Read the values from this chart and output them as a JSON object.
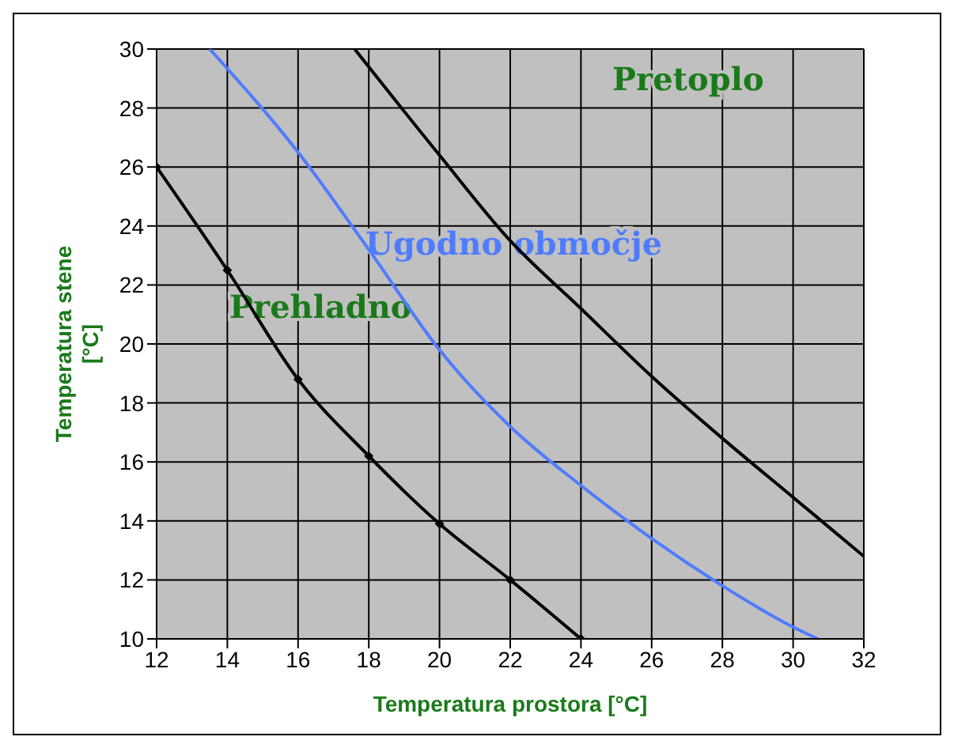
{
  "chart_data": {
    "type": "line",
    "xlabel": "Temperatura prostora [°C]",
    "ylabel": "Temperatura stene [°C]",
    "xlim": [
      12,
      32
    ],
    "xticks": [
      12,
      14,
      16,
      18,
      20,
      22,
      24,
      26,
      28,
      30,
      32
    ],
    "ylim": [
      10,
      30
    ],
    "yticks": [
      10,
      12,
      14,
      16,
      18,
      20,
      22,
      24,
      26,
      28,
      30
    ],
    "grid": true,
    "series": [
      {
        "color": "#000000",
        "marker": "diamond",
        "x": [
          12,
          14,
          16,
          18,
          20,
          22,
          24
        ],
        "values": [
          26,
          22.5,
          18.8,
          16.2,
          13.9,
          12,
          10
        ]
      },
      {
        "color": "#4f7cff",
        "marker": "none",
        "x": [
          13.5,
          16,
          18,
          20,
          22,
          24,
          26,
          28,
          30,
          30.7
        ],
        "values": [
          30,
          26.5,
          23.2,
          19.8,
          17.2,
          15.2,
          13.4,
          11.8,
          10.4,
          10
        ]
      },
      {
        "color": "#000000",
        "marker": "none",
        "x": [
          17.6,
          20,
          22,
          24,
          26,
          28,
          30,
          32
        ],
        "values": [
          30,
          26.4,
          23.5,
          21.2,
          18.9,
          16.8,
          14.8,
          12.8
        ]
      }
    ],
    "annotations": [
      "Pretoplo",
      "Ugodno območje",
      "Prehladno"
    ]
  }
}
